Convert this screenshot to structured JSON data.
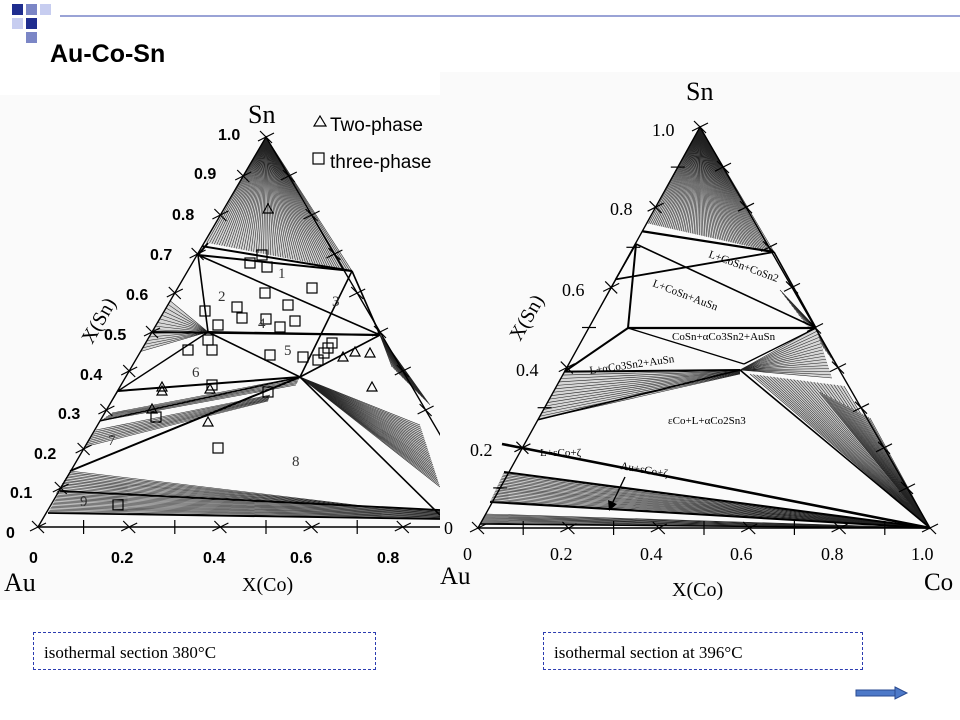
{
  "slide": {
    "title": "Au-Co-Sn",
    "accent_colors": [
      "#1f2d8f",
      "#7b86c6",
      "#c7cdf0"
    ]
  },
  "diagrams": [
    {
      "apex_top": "Sn",
      "apex_left": "Au",
      "axis_left_label": "X(Sn)",
      "axis_bottom_label": "X(Co)",
      "left_ticks": [
        "1.0",
        "0.9",
        "0.8",
        "0.7",
        "0.6",
        "0.5",
        "0.4",
        "0.3",
        "0.2",
        "0.1",
        "0"
      ],
      "bottom_ticks": [
        "0",
        "0.2",
        "0.4",
        "0.6",
        "0.8"
      ],
      "legend": [
        {
          "marker": "triangle",
          "label": "Two-phase"
        },
        {
          "marker": "square",
          "label": "three-phase"
        }
      ],
      "region_labels": [
        "1",
        "2",
        "3",
        "4",
        "5",
        "6",
        "7",
        "8",
        "9"
      ],
      "caption": "isothermal section 380°C"
    },
    {
      "apex_top": "Sn",
      "apex_left": "Au",
      "apex_right": "Co",
      "axis_left_label": "X(Sn)",
      "axis_bottom_label": "X(Co)",
      "left_ticks": [
        "1.0",
        "0.8",
        "0.6",
        "0.4",
        "0.2",
        "0"
      ],
      "bottom_ticks": [
        "0",
        "0.2",
        "0.4",
        "0.6",
        "0.8",
        "1.0"
      ],
      "phase_labels": [
        "L+CoSn+CoSn2",
        "L+CoSn+AuSn",
        "CoSn+αCo3Sn2+AuSn",
        "L+αCo3Sn2+AuSn",
        "εCo+L+αCo2Sn3",
        "L+εCo+ζ",
        "Au+εCo+ζ"
      ],
      "caption": "isothermal section at 396°C"
    }
  ],
  "nav": {
    "next_icon": "arrow-right-icon"
  }
}
